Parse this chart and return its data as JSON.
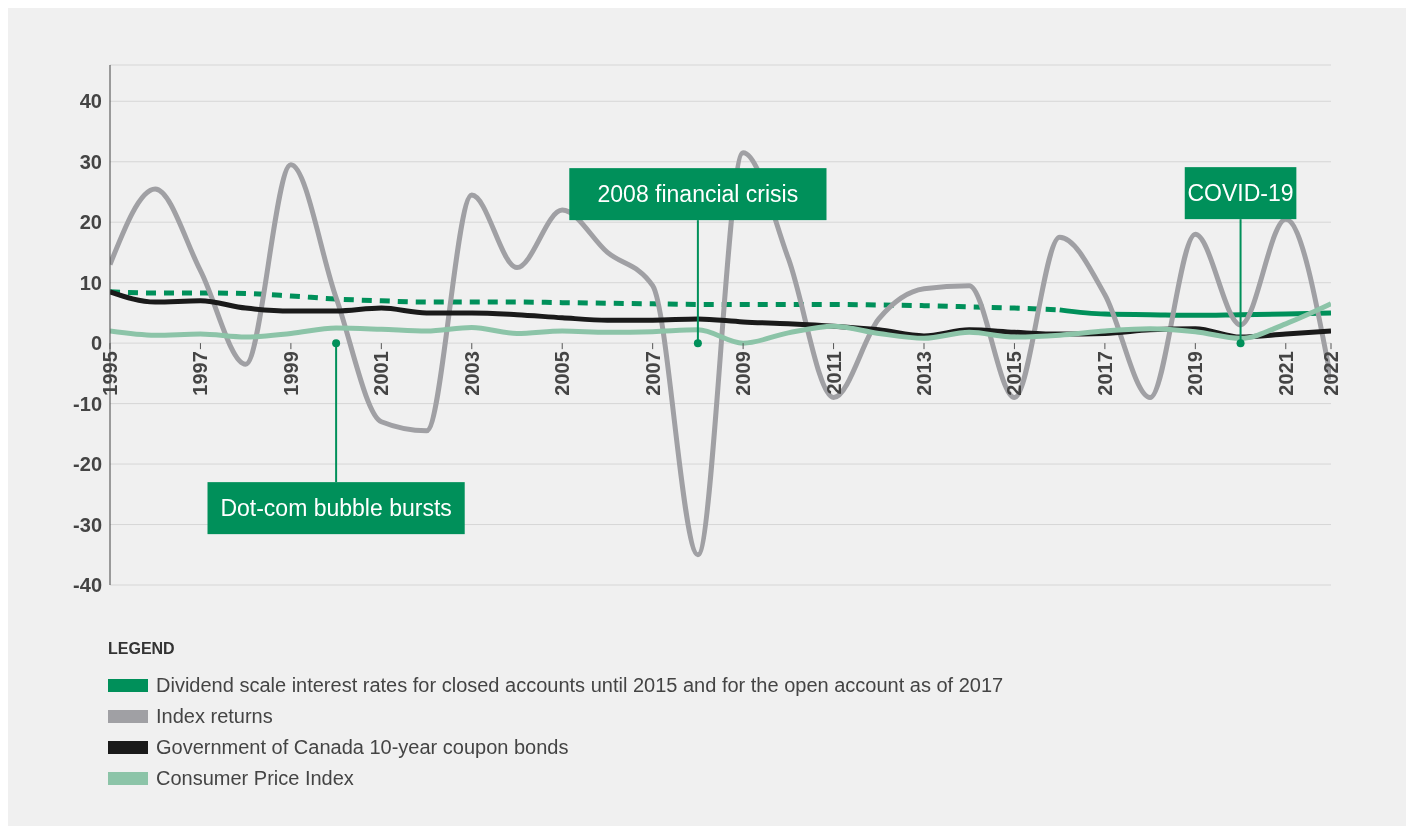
{
  "chart_data": {
    "type": "line",
    "x": [
      1995,
      1996,
      1997,
      1998,
      1999,
      2000,
      2001,
      2002,
      2003,
      2004,
      2005,
      2006,
      2007,
      2008,
      2009,
      2010,
      2011,
      2012,
      2013,
      2014,
      2015,
      2016,
      2017,
      2018,
      2019,
      2020,
      2021,
      2022
    ],
    "series": [
      {
        "color": "#00905a",
        "line_style": "dashed",
        "values": [
          8.5,
          8.3,
          8.3,
          8.2,
          7.8,
          7.3,
          7,
          6.8,
          6.8,
          6.8,
          6.7,
          6.6,
          6.5,
          6.4,
          6.4,
          6.4,
          6.4,
          6.3,
          6.2,
          6,
          5.8,
          5.5,
          null,
          null,
          null,
          null,
          null,
          null
        ]
      },
      {
        "name": "Dividend scale interest rates for closed accounts until 2015 and for the open account as of 2017",
        "color": "#00905a",
        "line_style": "solid",
        "values": [
          null,
          null,
          null,
          null,
          null,
          null,
          null,
          null,
          null,
          null,
          null,
          null,
          null,
          null,
          null,
          null,
          null,
          null,
          null,
          null,
          null,
          5.5,
          4.8,
          4.7,
          4.6,
          4.7,
          4.8,
          5
        ]
      },
      {
        "name": "Index returns",
        "color": "#a0a0a4",
        "line_style": "solid",
        "values": [
          13,
          25.5,
          12,
          -3.5,
          29.5,
          7.5,
          -13,
          -14.5,
          24.5,
          12.5,
          22,
          15,
          9.5,
          -35,
          31.5,
          14,
          -9,
          4,
          9,
          9.5,
          -9,
          17.5,
          8,
          -9,
          18,
          3,
          20.5,
          -6
        ]
      },
      {
        "name": "Government of Canada 10-year coupon bonds",
        "color": "#1a1a1a",
        "line_style": "solid",
        "values": [
          8.5,
          6.8,
          7,
          5.8,
          5.3,
          5.3,
          5.8,
          5,
          5,
          4.7,
          4.2,
          3.8,
          3.8,
          4,
          3.5,
          3.2,
          2.8,
          2.2,
          1.2,
          2.2,
          1.8,
          1.5,
          1.6,
          2.2,
          2.4,
          1,
          1.5,
          2
        ]
      },
      {
        "name": "Consumer Price Index",
        "color": "#8cc4a8",
        "line_style": "solid",
        "values": [
          2,
          1.3,
          1.5,
          1,
          1.6,
          2.5,
          2.3,
          2,
          2.6,
          1.6,
          2,
          1.8,
          1.9,
          2.2,
          0,
          1.7,
          2.8,
          1.6,
          0.8,
          1.8,
          1,
          1.3,
          2,
          2.4,
          1.9,
          0.8,
          3.2,
          6.5
        ]
      }
    ],
    "xlim": [
      1995,
      2022
    ],
    "xticks": [
      1995,
      1997,
      1999,
      2001,
      2003,
      2005,
      2007,
      2009,
      2011,
      2013,
      2015,
      2017,
      2019,
      2021,
      2022
    ],
    "ylim": [
      -40,
      46
    ],
    "yticks": [
      -40,
      -30,
      -20,
      -10,
      0,
      10,
      20,
      30,
      40
    ],
    "grid": "y",
    "legend": "bottom",
    "legend_title": "LEGEND",
    "marker": "none",
    "annotations": [
      {
        "text": "Dot-com bubble bursts",
        "x": 2000,
        "y": 0
      },
      {
        "text": "2008 financial crisis",
        "x": 2008,
        "y": 0
      },
      {
        "text": "COVID-19",
        "x": 2020,
        "y": 0
      }
    ]
  }
}
